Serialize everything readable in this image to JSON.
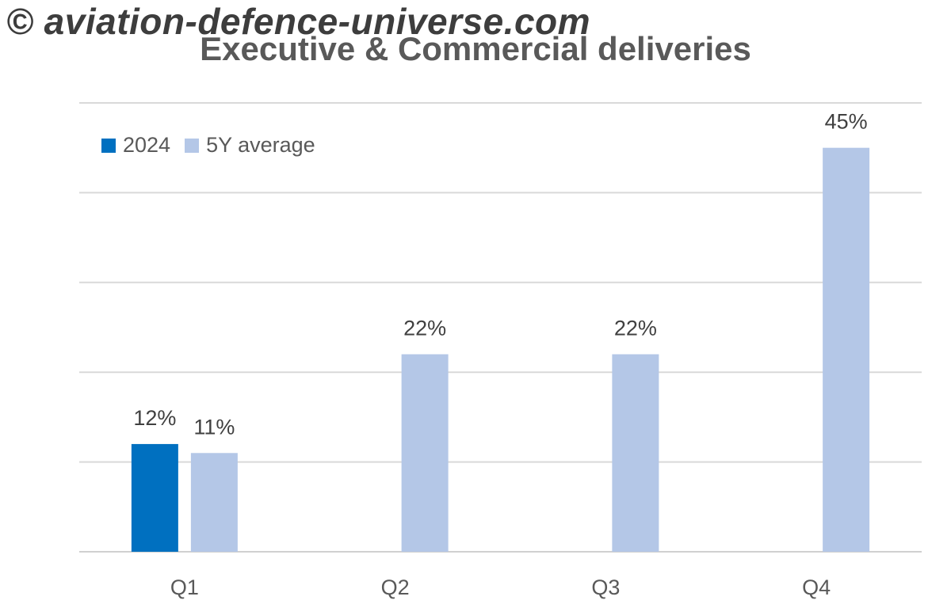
{
  "watermark": "© aviation-defence-universe.com",
  "chart_data": {
    "type": "bar",
    "title": "Executive & Commercial deliveries",
    "xlabel": "",
    "ylabel": "",
    "categories": [
      "Q1",
      "Q2",
      "Q3",
      "Q4"
    ],
    "series": [
      {
        "name": "2024",
        "values": [
          12,
          null,
          null,
          null
        ],
        "labels": [
          "12%",
          "",
          "",
          ""
        ],
        "color": "#0070c0"
      },
      {
        "name": "5Y average",
        "values": [
          11,
          22,
          22,
          45
        ],
        "labels": [
          "11%",
          "22%",
          "22%",
          "45%"
        ],
        "color": "#b4c7e7"
      }
    ],
    "ylim": [
      0,
      50
    ],
    "grid": true,
    "legend_position": "top-left"
  }
}
